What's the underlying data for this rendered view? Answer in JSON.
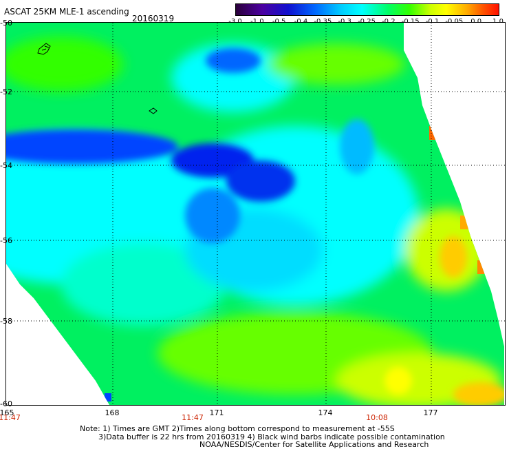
{
  "header": {
    "title": "ASCAT 25KM MLE-1 ascending",
    "date": "20160319"
  },
  "colorbar": {
    "ticks": [
      "-3.0",
      "-1.0",
      "-0.5",
      "-0.4",
      "-0.35",
      "-0.3",
      "-0.25",
      "-0.2",
      "-0.15",
      "-0.1",
      "-0.05",
      "0.0",
      "1.0"
    ],
    "colors": [
      "#2a003a",
      "#4b00a0",
      "#1010d0",
      "#0066ff",
      "#00ccff",
      "#00ffff",
      "#00ff66",
      "#33ff00",
      "#ccff00",
      "#ffff00",
      "#ffaa00",
      "#ff1000"
    ]
  },
  "axes": {
    "lat_labels": [
      "-50",
      "-52",
      "-54",
      "-56",
      "-58",
      "-60"
    ],
    "lon_labels": [
      "165",
      "168",
      "171",
      "174",
      "177"
    ],
    "time_labels": [
      "11:47",
      "11:47",
      "10:08"
    ]
  },
  "notes": {
    "line1": "Note: 1) Times are GMT 2)Times along bottom correspond to measurement at -55S",
    "line2": "3)Data buffer is 22 hrs from 20160319 4) Black wind barbs indicate possible contamination",
    "line3": "NOAA/NESDIS/Center for Satellite Applications and Research"
  }
}
